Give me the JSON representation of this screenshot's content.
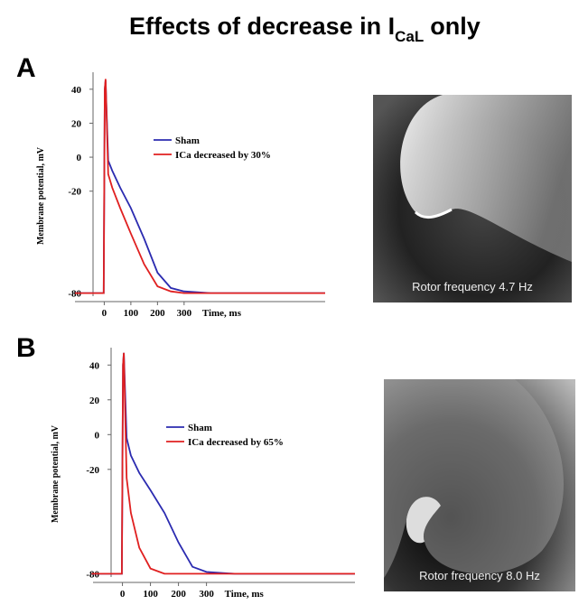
{
  "title": {
    "main": "Effects of decrease in I",
    "subscript": "CaL",
    "end": "only"
  },
  "chart_data": [
    {
      "type": "line",
      "panel": "A",
      "ylabel": "Membrane potential, mV",
      "xlabel": "Time, ms",
      "x": [
        -110,
        -2,
        2,
        5,
        15,
        30,
        60,
        100,
        150,
        200,
        250,
        300,
        400,
        830
      ],
      "series": [
        {
          "name": "Sham",
          "color": "#2b2bb0",
          "values": [
            -80,
            -80,
            40,
            45,
            -2,
            -8,
            -18,
            -30,
            -48,
            -68,
            -77,
            -79,
            -80,
            -80
          ]
        },
        {
          "name": "ICa decreased by 30%",
          "color": "#e02020",
          "values": [
            -80,
            -80,
            40,
            46,
            -10,
            -18,
            -30,
            -45,
            -63,
            -76,
            -79,
            -80,
            -80,
            -80
          ]
        }
      ],
      "xlim": [
        -110,
        830
      ],
      "ylim": [
        -85,
        50
      ],
      "xticks": [
        0,
        100,
        200,
        300
      ],
      "yticks": [
        40,
        20,
        0,
        -20,
        -80
      ],
      "image_caption": "Rotor frequency  4.7 Hz"
    },
    {
      "type": "line",
      "panel": "B",
      "ylabel": "Membrane potential, mV",
      "xlabel": "Time, ms",
      "x": [
        -110,
        -2,
        2,
        5,
        15,
        30,
        60,
        100,
        150,
        200,
        250,
        300,
        400,
        830
      ],
      "series": [
        {
          "name": "Sham",
          "color": "#2b2bb0",
          "values": [
            -80,
            -80,
            40,
            47,
            -2,
            -12,
            -22,
            -32,
            -45,
            -62,
            -76,
            -79,
            -80,
            -80
          ]
        },
        {
          "name": "ICa decreased by 65%",
          "color": "#e02020",
          "values": [
            -80,
            -80,
            40,
            47,
            -25,
            -45,
            -65,
            -77,
            -80,
            -80,
            -80,
            -80,
            -80,
            -80
          ]
        }
      ],
      "xlim": [
        -105,
        830
      ],
      "ylim": [
        -85,
        50
      ],
      "xticks": [
        0,
        100,
        200,
        300
      ],
      "yticks": [
        40,
        20,
        0,
        -20,
        -80
      ],
      "image_caption": "Rotor frequency  8.0 Hz"
    }
  ]
}
